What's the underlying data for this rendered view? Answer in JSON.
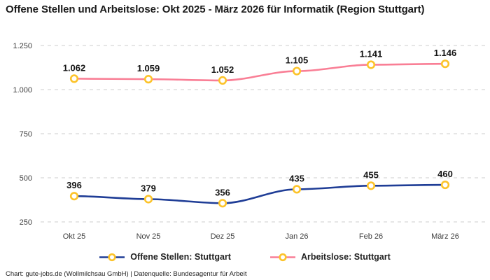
{
  "title": "Offene Stellen und Arbeitslose: Okt 2025 - März 2026 für Informatik (Region Stuttgart)",
  "footer": "Chart: gute-jobs.de (Wollmilchsau GmbH) | Datenquelle: Bundesagentur für Arbeit",
  "chart_data": {
    "type": "line",
    "title": "Offene Stellen und Arbeitslose: Okt 2025 - März 2026 für Informatik (Region Stuttgart)",
    "categories": [
      "Okt 25",
      "Nov 25",
      "Dez 25",
      "Jan 26",
      "Feb 26",
      "März 26"
    ],
    "series": [
      {
        "name": "Offene Stellen: Stuttgart",
        "color": "#1f3d96",
        "values": [
          396,
          379,
          356,
          435,
          455,
          460
        ],
        "labels": [
          "396",
          "379",
          "356",
          "435",
          "455",
          "460"
        ]
      },
      {
        "name": "Arbeitslose: Stuttgart",
        "color": "#f97e95",
        "values": [
          1062,
          1059,
          1052,
          1105,
          1141,
          1146
        ],
        "labels": [
          "1.062",
          "1.059",
          "1.052",
          "1.105",
          "1.141",
          "1.146"
        ]
      }
    ],
    "yticks": [
      {
        "value": 250,
        "label": "250"
      },
      {
        "value": 500,
        "label": "500"
      },
      {
        "value": 750,
        "label": "750"
      },
      {
        "value": 1000,
        "label": "1.000"
      },
      {
        "value": 1250,
        "label": "1.250"
      }
    ],
    "ylim": [
      250,
      1250
    ],
    "xlabel": "",
    "ylabel": "",
    "grid": "horizontal-dashed",
    "grid_color": "#cccccc",
    "tick_label_color": "#3d3d3d",
    "data_label_color": "#141414",
    "legend_position": "bottom",
    "marker": {
      "ring_color": "#fcc32a",
      "fill": "#ffffff"
    }
  }
}
